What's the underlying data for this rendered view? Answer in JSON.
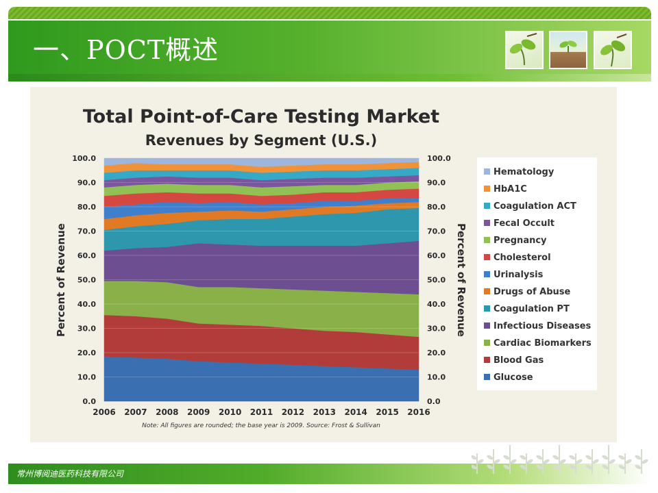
{
  "slide": {
    "title": "一、POCT概述",
    "footer": "常州博阅迪医药科技有限公司",
    "accent": "#4aa827"
  },
  "chart_data": {
    "type": "area",
    "stacked": true,
    "title": "Total Point-of-Care Testing Market",
    "subtitle": "Revenues by Segment (U.S.)",
    "ylabel": "Percent of Revenue",
    "y2label": "Percent of Revenue",
    "ylim": [
      0,
      100
    ],
    "yticks": [
      "0.0",
      "10.0",
      "20.0",
      "30.0",
      "40.0",
      "50.0",
      "60.0",
      "70.0",
      "80.0",
      "90.0",
      "100.0"
    ],
    "categories": [
      "2006",
      "2007",
      "2008",
      "2009",
      "2010",
      "2011",
      "2012",
      "2013",
      "2014",
      "2015",
      "2016"
    ],
    "legend_position": "right",
    "note": "Note: All figures are rounded; the base year is 2009. Source: Frost & Sullivan",
    "series": [
      {
        "name": "Glucose",
        "color": "#3a6fb1",
        "values": [
          18.5,
          18,
          17.5,
          16.5,
          16,
          15.5,
          15,
          14.5,
          14,
          13.5,
          13
        ]
      },
      {
        "name": "Blood Gas",
        "color": "#b23c3a",
        "values": [
          17,
          17,
          16.5,
          15.5,
          15.5,
          15.5,
          15,
          14.5,
          14.5,
          14,
          13.5
        ]
      },
      {
        "name": "Cardiac Biomarkers",
        "color": "#8ab04a",
        "values": [
          14,
          14.5,
          15,
          15,
          15.5,
          15.5,
          16,
          16.5,
          16.5,
          17,
          17.5
        ]
      },
      {
        "name": "Infectious Diseases",
        "color": "#6c4e91",
        "values": [
          12.5,
          13.5,
          14.5,
          18,
          17.5,
          17.5,
          18,
          18.5,
          19,
          20.5,
          22
        ]
      },
      {
        "name": "Coagulation PT",
        "color": "#2f97ad",
        "values": [
          8.5,
          9,
          9.5,
          9.5,
          10.5,
          11,
          12,
          13,
          13.5,
          14,
          13.5
        ]
      },
      {
        "name": "Drugs of Abuse",
        "color": "#e07a24",
        "values": [
          4.5,
          4.5,
          4.5,
          3.5,
          3.5,
          3,
          3,
          3,
          3,
          2.5,
          2.5
        ]
      },
      {
        "name": "Urinalysis",
        "color": "#3f7fcc",
        "values": [
          5,
          4.5,
          4.5,
          3.5,
          3.5,
          3,
          2.5,
          2.5,
          2,
          2,
          1.5
        ]
      },
      {
        "name": "Cholesterol",
        "color": "#d54842",
        "values": [
          4.5,
          4.5,
          4,
          4,
          3.5,
          3.5,
          3.5,
          3.5,
          3.5,
          3.5,
          4
        ]
      },
      {
        "name": "Pregnancy",
        "color": "#91c154",
        "values": [
          3.5,
          3.5,
          3.5,
          3.5,
          3.5,
          3.5,
          3.5,
          3,
          3,
          3,
          3
        ]
      },
      {
        "name": "Fecal Occult",
        "color": "#7b559f",
        "values": [
          3,
          3,
          3,
          3,
          3,
          3,
          3,
          3,
          3,
          2.5,
          2.5
        ]
      },
      {
        "name": "Coagulation ACT",
        "color": "#36a9c6",
        "values": [
          3,
          3,
          2.5,
          3,
          3,
          3,
          3,
          3,
          3,
          3,
          3
        ]
      },
      {
        "name": "HbA1C",
        "color": "#f0923a",
        "values": [
          3,
          3,
          2.5,
          2.5,
          2.5,
          2.5,
          2.5,
          2.5,
          2.5,
          2.5,
          2.5
        ]
      },
      {
        "name": "Hematology",
        "color": "#9fb6dc",
        "values": [
          3,
          2.5,
          2.5,
          2.5,
          2,
          2,
          2,
          2.5,
          2.5,
          2.5,
          2.5
        ]
      }
    ]
  }
}
